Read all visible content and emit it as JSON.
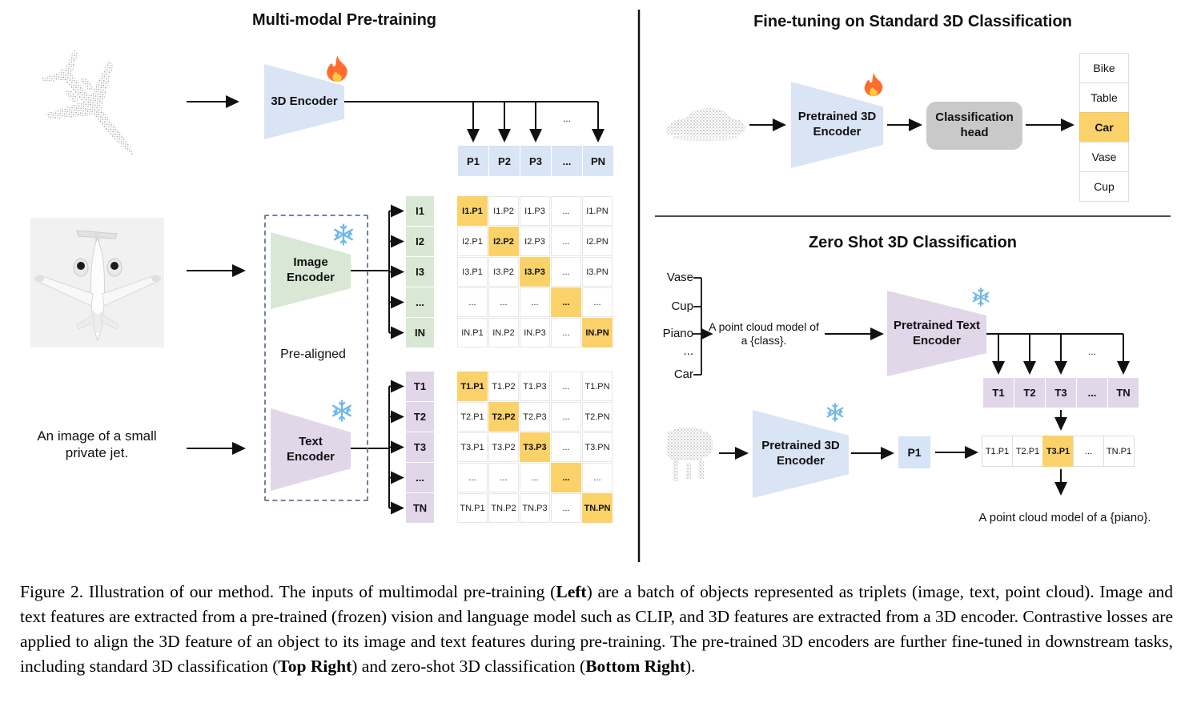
{
  "colors": {
    "blue_cell": "#d9e4f5",
    "green_cell": "#d8e8d4",
    "purple_cell": "#e2d6e9",
    "highlight_orange": "#fbd269",
    "head_gray": "#c9c9c9",
    "snowflake_blue": "#6fb7ea",
    "flame_orange": "#ff6d2e"
  },
  "icons": [
    "flame-icon",
    "snowflake-icon",
    "point-cloud-airplane",
    "airplane-photo",
    "point-cloud-car",
    "point-cloud-piano"
  ],
  "left": {
    "title": "Multi-modal Pre-training",
    "encoder_3d_label": "3D Encoder",
    "image_encoder_label": "Image Encoder",
    "text_encoder_label": "Text Encoder",
    "pre_aligned_label": "Pre-aligned",
    "text_input": "An image of a small private jet.",
    "ellipsis": "...",
    "p_row": [
      "P1",
      "P2",
      "P3",
      "...",
      "PN"
    ],
    "image_row_labels": [
      "I1",
      "I2",
      "I3",
      "...",
      "IN"
    ],
    "image_matrix": [
      [
        "I1.P1",
        "I1.P2",
        "I1.P3",
        "...",
        "I1.PN"
      ],
      [
        "I2.P1",
        "I2.P2",
        "I2.P3",
        "...",
        "I2.PN"
      ],
      [
        "I3.P1",
        "I3.P2",
        "I3.P3",
        "...",
        "I3.PN"
      ],
      [
        "...",
        "...",
        "...",
        "...",
        "..."
      ],
      [
        "IN.P1",
        "IN.P2",
        "IN.P3",
        "...",
        "IN.PN"
      ]
    ],
    "text_row_labels": [
      "T1",
      "T2",
      "T3",
      "...",
      "TN"
    ],
    "text_matrix": [
      [
        "T1.P1",
        "T1.P2",
        "T1.P3",
        "...",
        "T1.PN"
      ],
      [
        "T2.P1",
        "T2.P2",
        "T2.P3",
        "...",
        "T2.PN"
      ],
      [
        "T3.P1",
        "T3.P2",
        "T3.P3",
        "...",
        "T3.PN"
      ],
      [
        "...",
        "...",
        "...",
        "...",
        "..."
      ],
      [
        "TN.P1",
        "TN.P2",
        "TN.P3",
        "...",
        "TN.PN"
      ]
    ],
    "matrix_highlight": "diagonal"
  },
  "top_right": {
    "title": "Fine-tuning on Standard 3D Classification",
    "encoder_label": "Pretrained 3D Encoder",
    "head_label": "Classification head",
    "classes": [
      "Bike",
      "Table",
      "Car",
      "Vase",
      "Cup"
    ],
    "highlight_index": 2
  },
  "bottom_right": {
    "title": "Zero Shot 3D Classification",
    "class_list": [
      "Vase",
      "Cup",
      "Piano",
      "...",
      "Car"
    ],
    "prompt_line1": "A point cloud model of",
    "prompt_line2": "a {class}.",
    "text_encoder_label": "Pretrained Text Encoder",
    "encoder_3d_label": "Pretrained 3D Encoder",
    "t_row": [
      "T1",
      "T2",
      "T3",
      "...",
      "TN"
    ],
    "ellipsis": "...",
    "p1_label": "P1",
    "result_row": [
      "T1.P1",
      "T2.P1",
      "T3.P1",
      "...",
      "TN.P1"
    ],
    "result_highlight_index": 2,
    "result_caption": "A point cloud model of a {piano}."
  },
  "caption": {
    "segments": [
      {
        "text": "Figure 2. Illustration of our method.  The inputs of multimodal pre-training (",
        "bold": false
      },
      {
        "text": "Left",
        "bold": true
      },
      {
        "text": ") are a batch of objects represented as triplets (image, text, point cloud).  Image and text features are extracted from a pre-trained (frozen) vision and language model such as CLIP, and 3D features are extracted from a 3D encoder.  Contrastive losses are applied to align the 3D feature of an object to its image and text features during pre-training.  The pre-trained 3D encoders are further fine-tuned in downstream tasks, including standard 3D classification (",
        "bold": false
      },
      {
        "text": "Top Right",
        "bold": true
      },
      {
        "text": ") and zero-shot 3D classification (",
        "bold": false
      },
      {
        "text": "Bottom Right",
        "bold": true
      },
      {
        "text": ").",
        "bold": false
      }
    ]
  }
}
